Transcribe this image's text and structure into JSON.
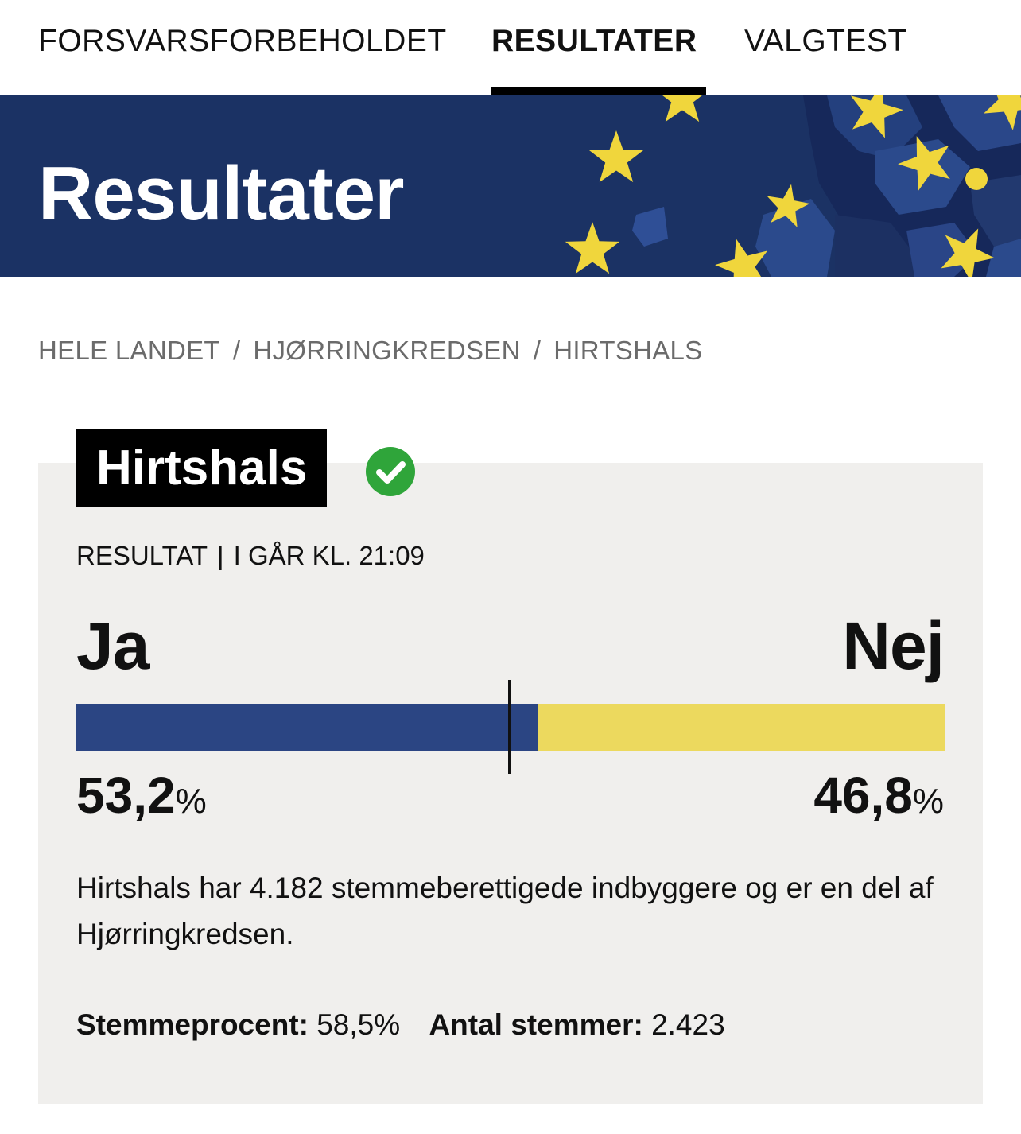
{
  "nav": {
    "tabs": [
      {
        "label": "FORSVARSFORBEHOLDET",
        "active": false
      },
      {
        "label": "RESULTATER",
        "active": true
      },
      {
        "label": "VALGTEST",
        "active": false
      }
    ]
  },
  "banner": {
    "title": "Resultater",
    "colors": {
      "background": "#1b3264",
      "star": "#f0d63c"
    }
  },
  "breadcrumb": {
    "items": [
      "HELE LANDET",
      "HJØRRINGKREDSEN",
      "HIRTSHALS"
    ],
    "separator": "/"
  },
  "result": {
    "place": "Hirtshals",
    "status_icon": "check-circle-icon",
    "meta_label": "RESULTAT",
    "meta_divider": "|",
    "meta_time": "I GÅR KL. 21:09",
    "yes_label": "Ja",
    "no_label": "Nej",
    "yes_value": "53,2",
    "no_value": "46,8",
    "percent_sign": "%",
    "yes_fraction": 0.532,
    "colors": {
      "yes": "#2b4583",
      "no": "#ecd95e"
    },
    "description": "Hirtshals har 4.182 stemmeberettigede indbyggere og er en del af Hjørringkredsen.",
    "turnout_label": "Stemmeprocent:",
    "turnout_value": "58,5%",
    "votes_label": "Antal stemmer:",
    "votes_value": "2.423"
  }
}
